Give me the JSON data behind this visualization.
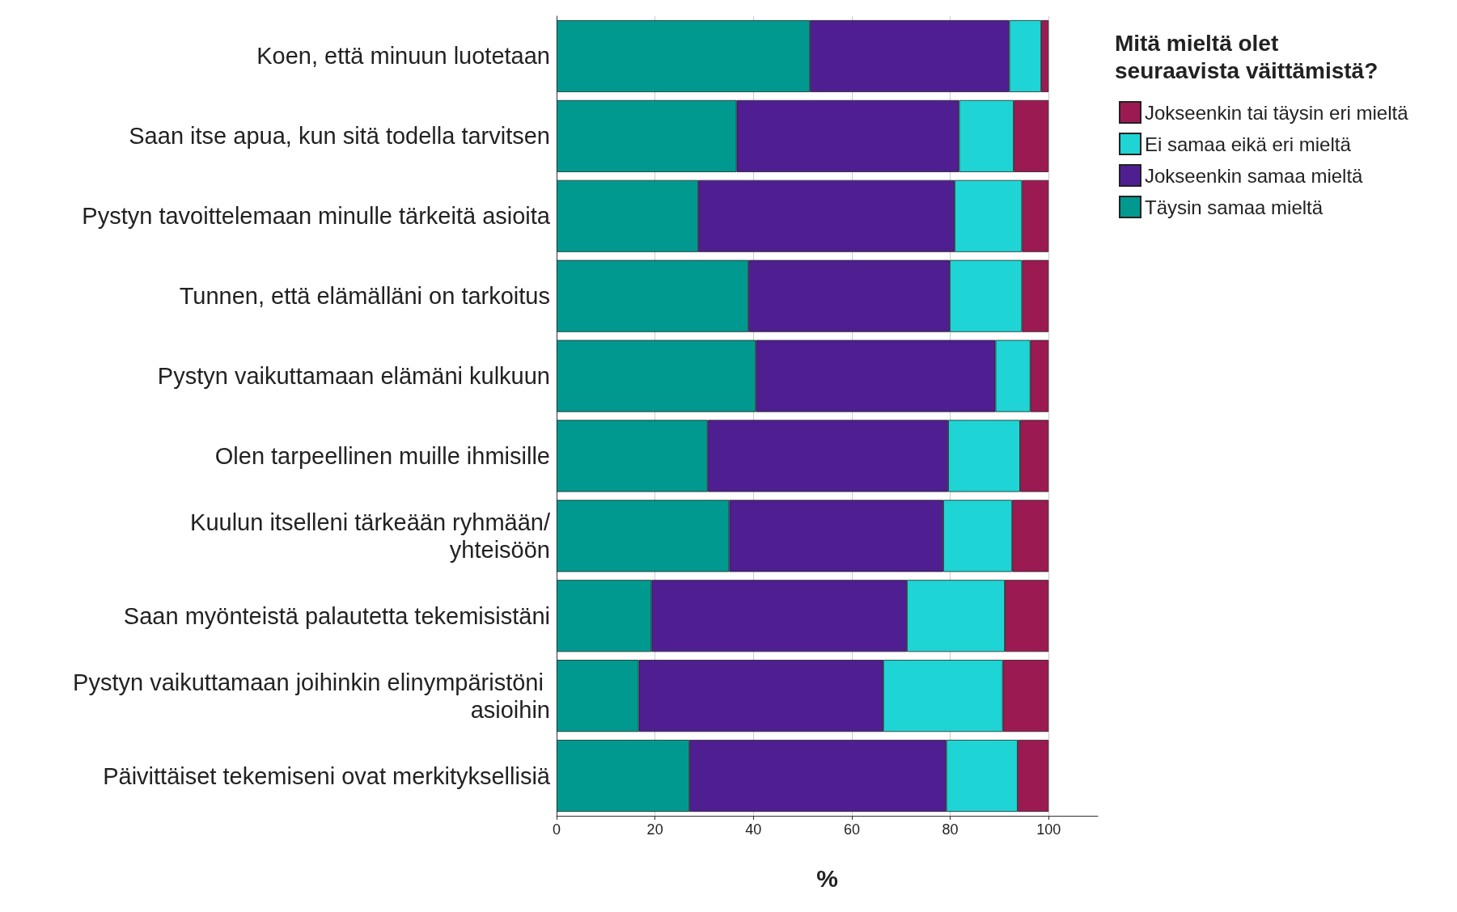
{
  "chart_data": {
    "type": "bar",
    "orientation": "horizontal",
    "stacked": true,
    "xlabel": "%",
    "legend_title": "Mitä mieltä olet seuraavista väittämistä?",
    "legend": "top right",
    "grid": "x",
    "xlim": [
      0,
      110
    ],
    "xticks": [
      0,
      20,
      40,
      60,
      80,
      100
    ],
    "categories": [
      "Koen, että minuun luotetaan",
      "Saan itse apua, kun sitä todella tarvitsen",
      "Pystyn tavoittelemaan minulle tärkeitä asioita",
      "Tunnen, että elämälläni on tarkoitus",
      "Pystyn vaikuttamaan elämäni kulkuun",
      "Olen tarpeellinen muille ihmisille",
      "Kuulun itselleni tärkeään ryhmään/yhteisöön",
      "Saan myönteistä palautetta tekemisistäni",
      "Pystyn vaikuttamaan joihinkin elinympäristöni asioihin",
      "Päivittäiset tekemiseni ovat merkityksellisiä"
    ],
    "series": [
      {
        "name": "Täysin samaa mieltä",
        "color": "#00998f",
        "values": [
          51.5,
          36.6,
          28.8,
          39.0,
          40.5,
          30.7,
          35.1,
          19.3,
          16.7,
          27.0
        ]
      },
      {
        "name": "Jokseenkin samaa mieltä",
        "color": "#4f1f91",
        "values": [
          40.5,
          45.2,
          52.1,
          40.9,
          48.7,
          48.9,
          43.5,
          51.9,
          49.7,
          52.2
        ]
      },
      {
        "name": "Ei samaa eikä eri mieltä",
        "color": "#1fd4d4",
        "values": [
          6.5,
          11.1,
          13.7,
          14.7,
          7.1,
          14.6,
          14.0,
          19.9,
          24.3,
          14.5
        ]
      },
      {
        "name": "Jokseenkin tai täysin eri mieltä",
        "color": "#9c1a52",
        "values": [
          1.5,
          7.1,
          5.4,
          5.4,
          3.7,
          5.8,
          7.4,
          8.9,
          9.3,
          6.3
        ]
      }
    ]
  }
}
